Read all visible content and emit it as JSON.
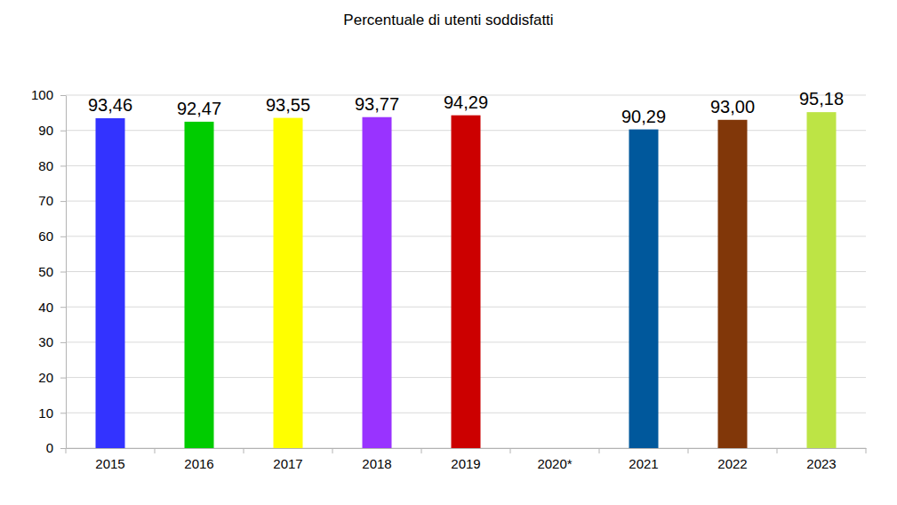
{
  "chart_data": {
    "type": "bar",
    "title": "Percentuale di utenti soddisfatti",
    "categories": [
      "2015",
      "2016",
      "2017",
      "2018",
      "2019",
      "2020*",
      "2021",
      "2022",
      "2023"
    ],
    "values": [
      93.46,
      92.47,
      93.55,
      93.77,
      94.29,
      null,
      90.29,
      93.0,
      95.18
    ],
    "value_labels": [
      "93,46",
      "92,47",
      "93,55",
      "93,77",
      "94,29",
      null,
      "90,29",
      "93,00",
      "95,18"
    ],
    "colors": [
      "#3333ff",
      "#00cc00",
      "#ffff00",
      "#9933ff",
      "#cc0000",
      null,
      "#00589c",
      "#813709",
      "#bde445"
    ],
    "ylim": [
      0,
      100
    ],
    "yticks": [
      0,
      10,
      20,
      30,
      40,
      50,
      60,
      70,
      80,
      90,
      100
    ],
    "grid": true,
    "data_labels": true
  }
}
